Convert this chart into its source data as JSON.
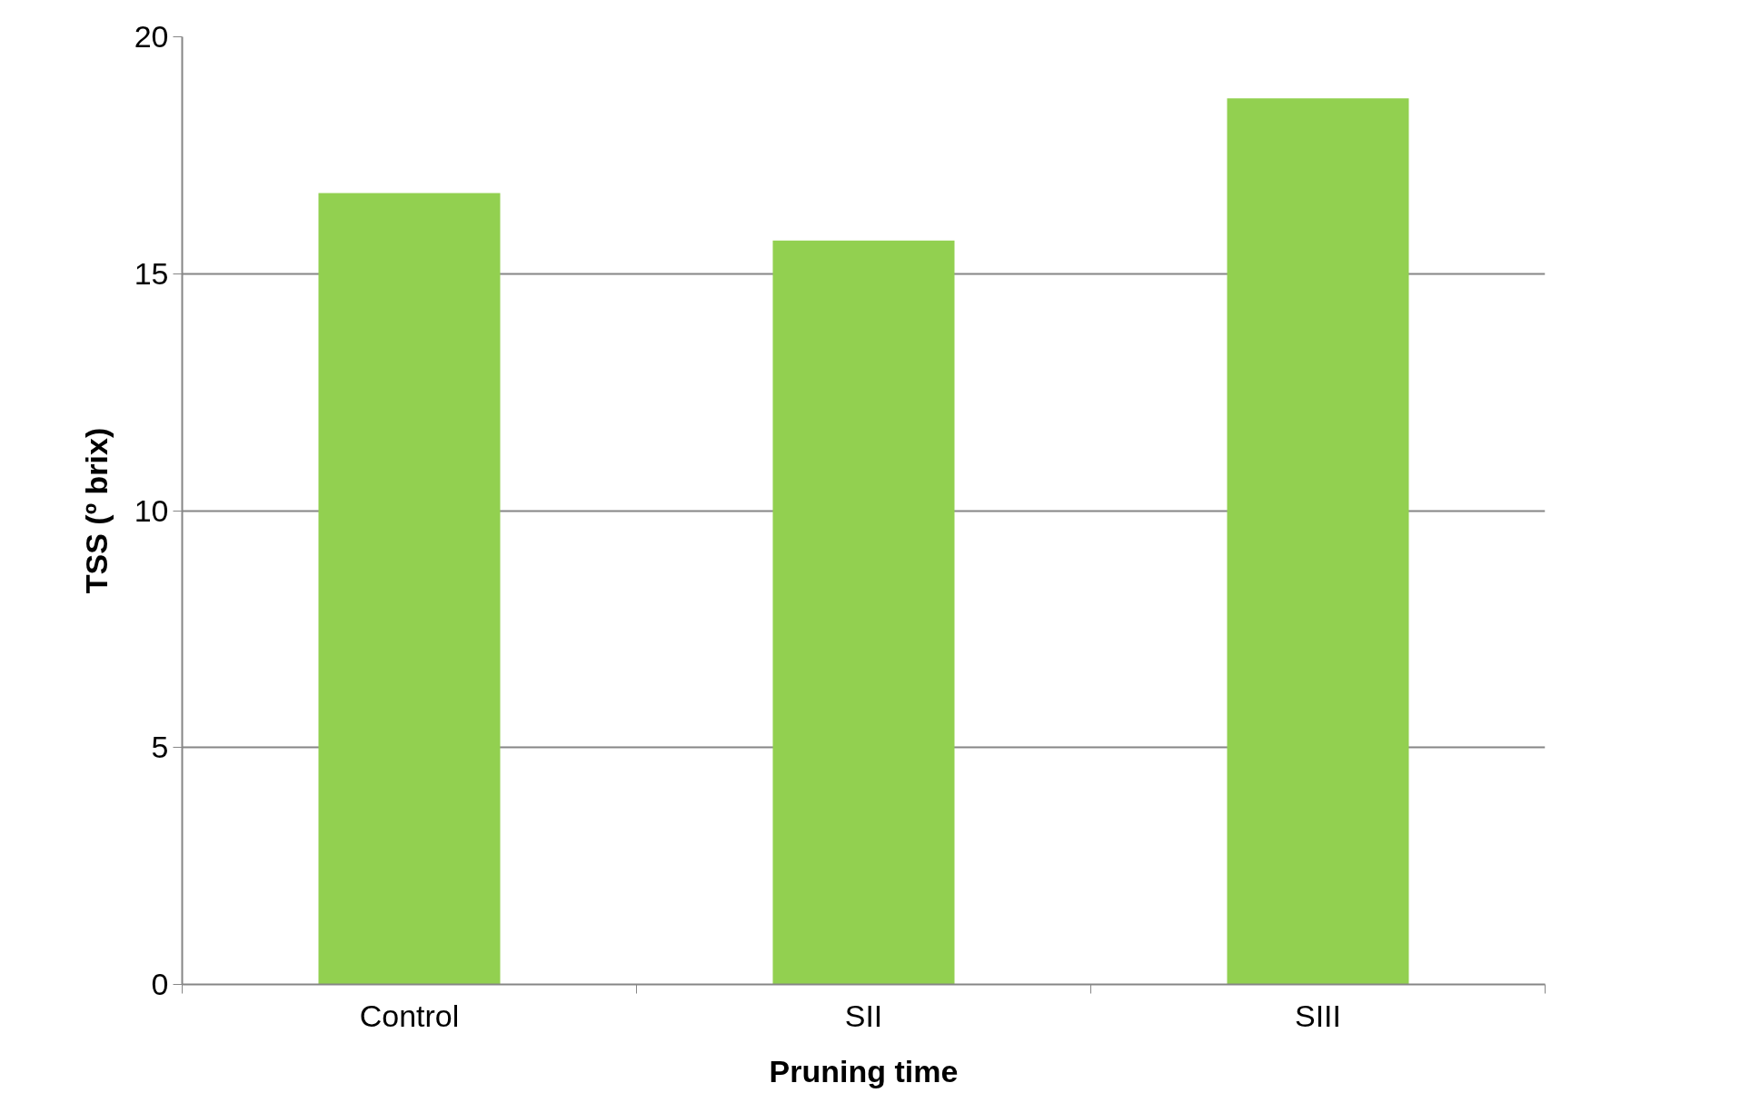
{
  "chart_data": {
    "type": "bar",
    "xlabel": "Pruning time",
    "ylabel": "TSS (º brix)",
    "categories": [
      "Control",
      "SII",
      "SIII"
    ],
    "values": [
      16.7,
      15.7,
      18.7
    ],
    "color": "#92d050",
    "ylim": [
      0,
      20
    ],
    "yticks": [
      0,
      5,
      10,
      15,
      20
    ],
    "grid": "y"
  }
}
